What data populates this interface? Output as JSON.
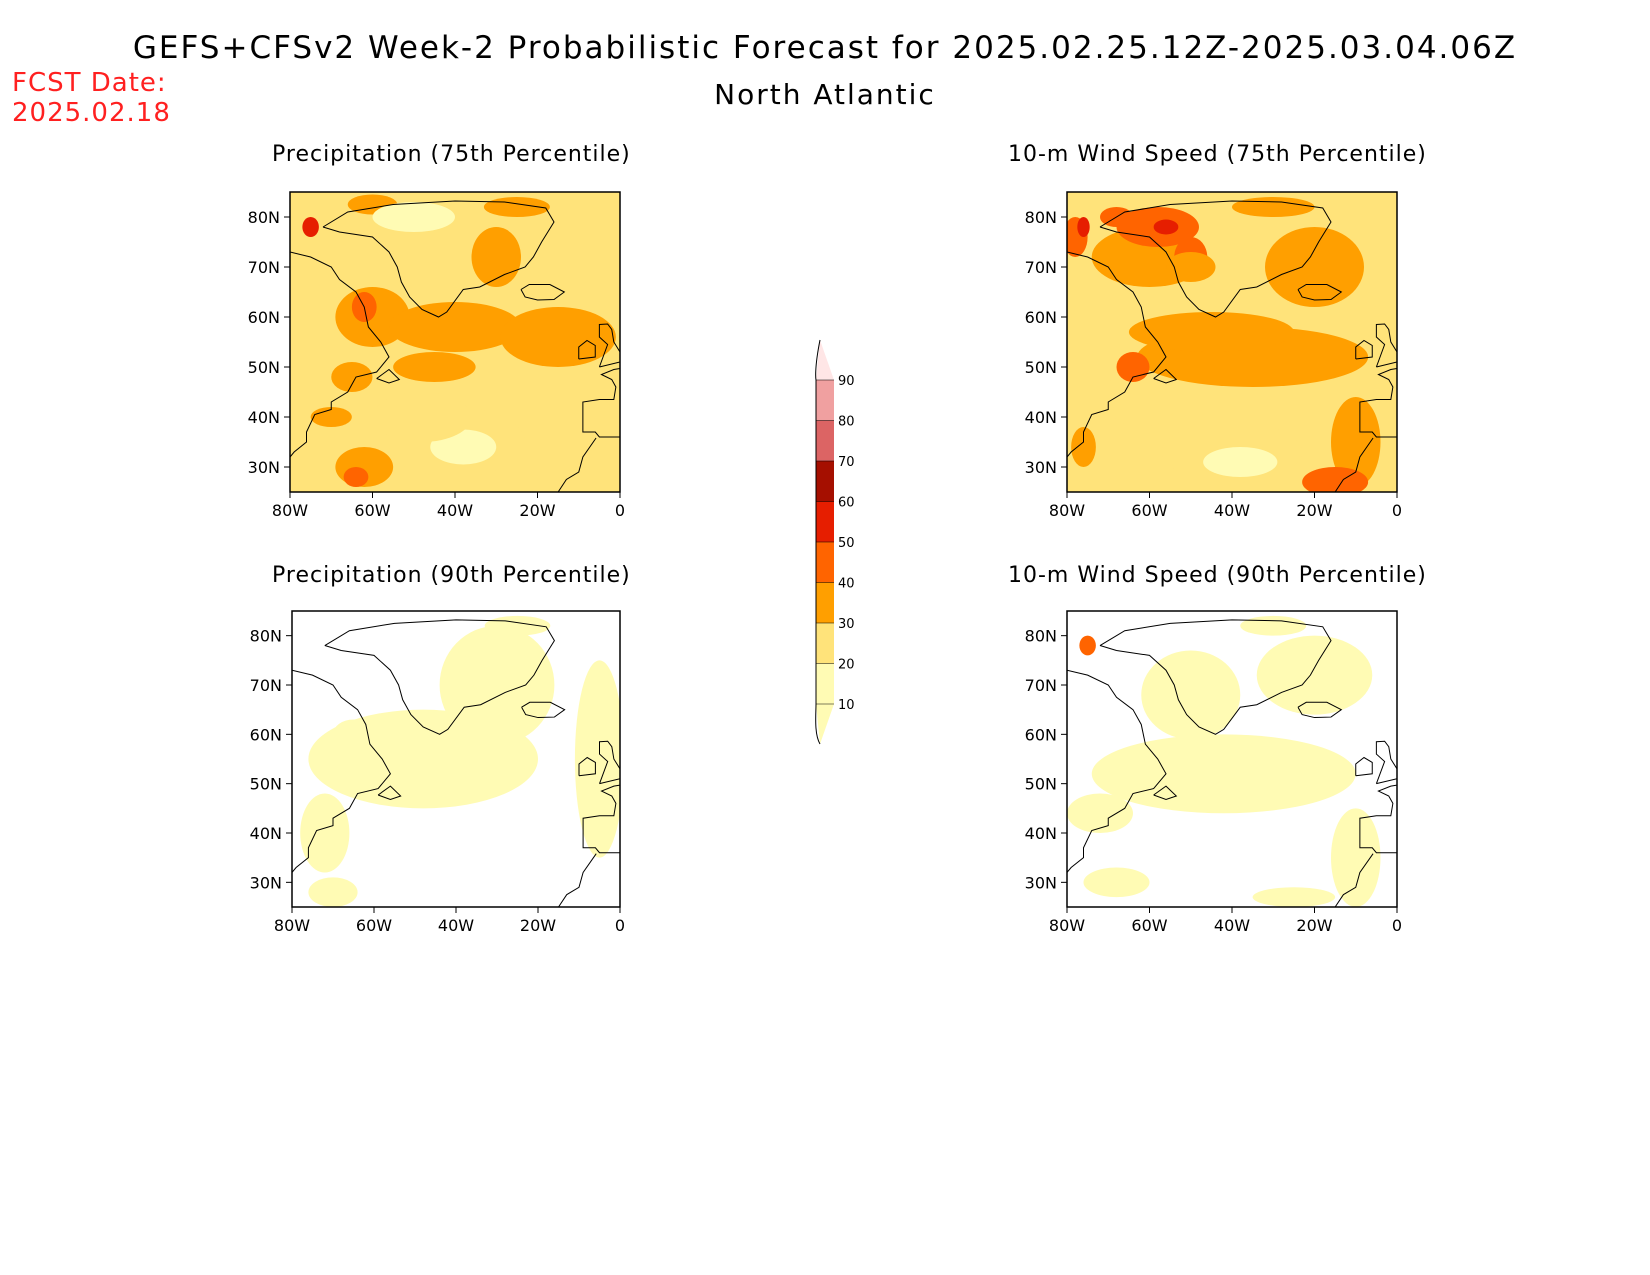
{
  "header": {
    "title": "GEFS+CFSv2 Week-2 Probabilistic Forecast for 2025.02.25.12Z-2025.03.04.06Z",
    "subtitle": "North Atlantic",
    "fcst_label": "FCST Date:",
    "fcst_date": "2025.02.18"
  },
  "axes": {
    "lat_labels": [
      "80N",
      "70N",
      "60N",
      "50N",
      "40N",
      "30N"
    ],
    "lat_values": [
      80,
      70,
      60,
      50,
      40,
      30
    ],
    "lon_labels": [
      "80W",
      "60W",
      "40W",
      "20W",
      "0"
    ],
    "lon_values": [
      -80,
      -60,
      -40,
      -20,
      0
    ],
    "lat_range": [
      25,
      85
    ],
    "lon_range": [
      -80,
      0
    ]
  },
  "panels": [
    {
      "title": "Precipitation (75th Percentile)",
      "variable": "precipitation",
      "percentile": 75
    },
    {
      "title": "10-m Wind Speed (75th Percentile)",
      "variable": "wind",
      "percentile": 75
    },
    {
      "title": "Precipitation (90th Percentile)",
      "variable": "precipitation",
      "percentile": 90
    },
    {
      "title": "10-m Wind Speed (90th Percentile)",
      "variable": "wind",
      "percentile": 90
    }
  ],
  "colorbar": {
    "levels": [
      10,
      20,
      30,
      40,
      50,
      60,
      70,
      80,
      90
    ],
    "labels": [
      "90",
      "80",
      "70",
      "60",
      "50",
      "40",
      "30",
      "20",
      "10"
    ],
    "colors": [
      "#fffbb4",
      "#ffe37a",
      "#ff9f00",
      "#ff6400",
      "#e61e00",
      "#a50f00",
      "#dc6464",
      "#f0a0a0",
      "#ffe6e6"
    ]
  }
}
